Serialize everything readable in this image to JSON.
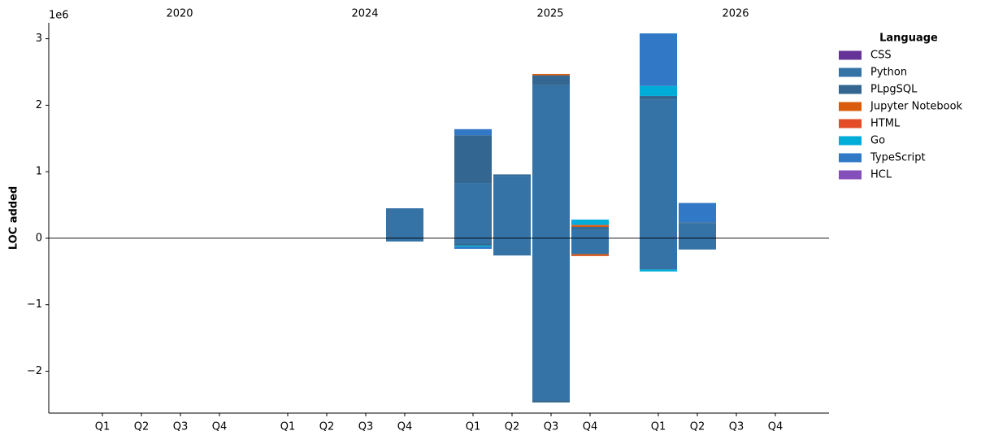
{
  "chart_data": {
    "type": "bar",
    "stacked": true,
    "y_label": "LOC added",
    "y_offset_label": "1e6",
    "legend_title": "Language",
    "legend_position": "outside right",
    "groups": [
      "2020",
      "2024",
      "2025",
      "2026"
    ],
    "categories": [
      "Q1",
      "Q2",
      "Q3",
      "Q4",
      "Q1",
      "Q2",
      "Q3",
      "Q4",
      "Q1",
      "Q2",
      "Q3",
      "Q4",
      "Q1",
      "Q2",
      "Q3",
      "Q4"
    ],
    "ylim": [
      -2.63,
      3.24
    ],
    "yticks": [
      {
        "value": -2,
        "label": "−2"
      },
      {
        "value": -1,
        "label": "−1"
      },
      0,
      1,
      2,
      3
    ],
    "series": [
      {
        "name": "CSS",
        "color": "#663399",
        "values": [
          0,
          0,
          0,
          0,
          0,
          0,
          0,
          0,
          0,
          0,
          0,
          0,
          0,
          0,
          0,
          0
        ],
        "deleted_values": [
          0,
          0,
          0,
          0,
          0,
          0,
          0,
          0,
          0,
          0,
          0,
          0,
          0,
          0,
          0,
          0
        ]
      },
      {
        "name": "Python",
        "color": "#3572A5",
        "values": [
          0,
          0,
          0,
          0,
          0,
          0,
          0,
          0.45,
          0.83,
          0.94,
          2.3,
          0.14,
          2.08,
          0.23,
          0,
          0
        ],
        "deleted_values": [
          0,
          0,
          0,
          0,
          0,
          0,
          0,
          -0.05,
          -0.08,
          -0.26,
          -2.44,
          -0.24,
          -0.47,
          -0.17,
          0,
          0
        ]
      },
      {
        "name": "PLpgSQL",
        "color": "#336791",
        "values": [
          0,
          0,
          0,
          0,
          0,
          0,
          0,
          0,
          0.72,
          0.02,
          0.15,
          0.03,
          0.06,
          0.01,
          0,
          0
        ],
        "deleted_values": [
          0,
          0,
          0,
          0,
          0,
          0,
          0,
          0,
          -0.03,
          0,
          -0.03,
          0,
          0,
          0,
          0,
          0
        ]
      },
      {
        "name": "Jupyter Notebook",
        "color": "#DA5B0B",
        "values": [
          0,
          0,
          0,
          0,
          0,
          0,
          0,
          0,
          0,
          0,
          0.02,
          0.02,
          0,
          0,
          0,
          0
        ],
        "deleted_values": [
          0,
          0,
          0,
          0,
          0,
          0,
          0,
          0,
          0,
          0,
          0,
          -0.02,
          0,
          0,
          0,
          0
        ]
      },
      {
        "name": "HTML",
        "color": "#e34c26",
        "values": [
          0,
          0,
          0,
          0,
          0,
          0,
          0,
          0,
          0,
          0,
          0,
          0.01,
          0,
          0,
          0,
          0
        ],
        "deleted_values": [
          0,
          0,
          0,
          0,
          0,
          0,
          0,
          0,
          0,
          0,
          0,
          -0.01,
          0,
          0,
          0,
          0
        ]
      },
      {
        "name": "Go",
        "color": "#00ADD8",
        "values": [
          0,
          0,
          0,
          0,
          0,
          0,
          0,
          0,
          0,
          0,
          0,
          0.08,
          0.15,
          0,
          0,
          0
        ],
        "deleted_values": [
          0,
          0,
          0,
          0,
          0,
          0,
          0,
          0,
          -0.02,
          0,
          0,
          0,
          -0.03,
          0,
          0,
          0
        ]
      },
      {
        "name": "TypeScript",
        "color": "#3178c6",
        "values": [
          0,
          0,
          0,
          0,
          0,
          0,
          0,
          0,
          0.09,
          0,
          0,
          0,
          0.79,
          0.29,
          0,
          0
        ],
        "deleted_values": [
          0,
          0,
          0,
          0,
          0,
          0,
          0,
          0,
          -0.03,
          0,
          0,
          0,
          0,
          0,
          0,
          0
        ]
      },
      {
        "name": "HCL",
        "color": "#844FBA",
        "values": [
          0,
          0,
          0,
          0,
          0,
          0,
          0,
          0,
          0,
          0,
          0,
          0,
          0,
          0,
          0,
          0
        ],
        "deleted_values": [
          0,
          0,
          0,
          0,
          0,
          0,
          0,
          0,
          0,
          0,
          0,
          0,
          0,
          0,
          0,
          0
        ]
      }
    ]
  }
}
